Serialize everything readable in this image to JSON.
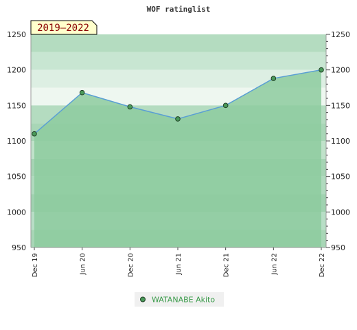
{
  "chart_data": {
    "type": "area",
    "title": "WOF ratinglist",
    "period_badge": "2019–2022",
    "categories": [
      "Dec 19",
      "Jun 20",
      "Dec 20",
      "Jun 21",
      "Dec 21",
      "Jun 22",
      "Dec 22"
    ],
    "series": [
      {
        "name": "WATANABE Akito",
        "values": [
          1110,
          1168,
          1148,
          1131,
          1150,
          1188,
          1200
        ]
      }
    ],
    "ylim": [
      950,
      1250
    ],
    "yticks": [
      950,
      1000,
      1050,
      1100,
      1150,
      1200,
      1250
    ],
    "grid": false,
    "legend_position": "bottom",
    "colors": {
      "area_fill": "#8dcb9f",
      "line": "#5a9fd4",
      "marker_fill": "#4a9a5a",
      "marker_stroke": "#1f3f25",
      "badge_bg": "#ffffcc",
      "badge_text": "#8b0000",
      "legend_text": "#3a9b4a"
    }
  }
}
